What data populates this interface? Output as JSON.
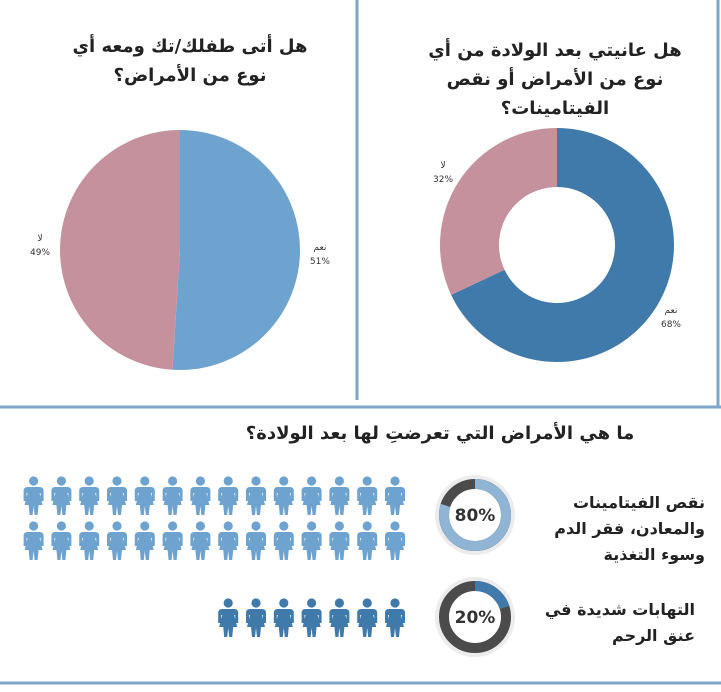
{
  "chart_data": [
    {
      "type": "pie",
      "title": "هل أتى طفلك/تك ومعه أي نوع من الأمراض؟",
      "categories": [
        "نعم",
        "لا"
      ],
      "values": [
        51,
        49
      ],
      "value_labels": [
        "51%",
        "49%"
      ],
      "colors": [
        "#6fa3cf",
        "#c4919c"
      ]
    },
    {
      "type": "donut",
      "title": "هل عانيتي بعد الولادة من أي نوع من الأمراض أو نقص الفيتامينات؟",
      "categories": [
        "نعم",
        "لا"
      ],
      "values": [
        68,
        32
      ],
      "value_labels": [
        "68%",
        "32%"
      ],
      "colors": [
        "#3f7aab",
        "#c4919c"
      ]
    }
  ],
  "infographic": {
    "title": "ما هي الأمراض التي تعرضتِ لها بعد الولادة؟",
    "items": [
      {
        "label": "نقص الفيتامينات والمعادن، فقر الدم وسوء التغذية",
        "value": 80,
        "value_label": "80%",
        "icon_count": 28,
        "color": "#6fa3cf"
      },
      {
        "label": "التهابات شديدة في عنق الرحم",
        "value": 20,
        "value_label": "20%",
        "icon_count": 7,
        "color": "#3f7aab"
      }
    ]
  }
}
